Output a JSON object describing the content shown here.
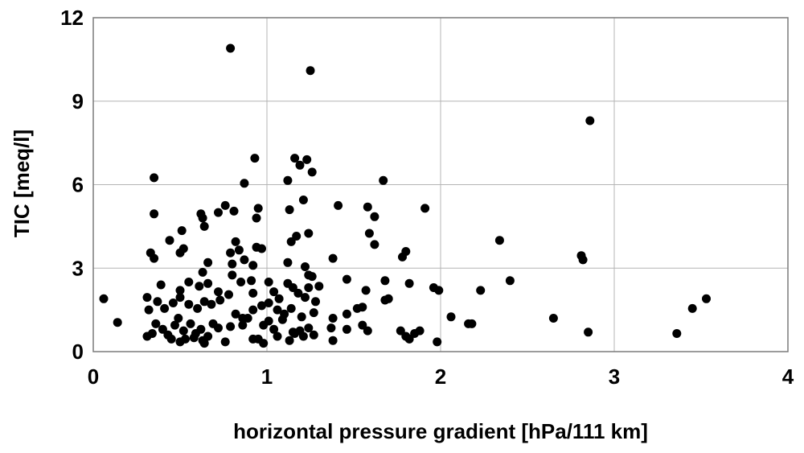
{
  "chart_data": {
    "type": "scatter",
    "title": "",
    "xlabel": "horizontal pressure gradient [hPa/111 km]",
    "ylabel": "TIC [meq/l]",
    "xlim": [
      0,
      4
    ],
    "ylim": [
      0,
      12
    ],
    "xticks": [
      "0",
      "1",
      "2",
      "3",
      "4"
    ],
    "yticks": [
      "0",
      "3",
      "6",
      "9",
      "12"
    ],
    "x_tick_values": [
      0,
      1,
      2,
      3,
      4
    ],
    "y_tick_values": [
      0,
      3,
      6,
      9,
      12
    ],
    "grid": "horizontal and vertical at major ticks",
    "legend": "none",
    "colors": {
      "point": "#000000",
      "grid": "#b4b4b4",
      "frame": "#7a7a7a"
    },
    "points": [
      [
        0.06,
        1.9
      ],
      [
        0.14,
        1.05
      ],
      [
        0.79,
        10.9
      ],
      [
        1.25,
        10.1
      ],
      [
        2.86,
        8.3
      ],
      [
        0.35,
        6.25
      ],
      [
        0.93,
        6.95
      ],
      [
        1.16,
        6.95
      ],
      [
        1.23,
        6.9
      ],
      [
        1.19,
        6.7
      ],
      [
        1.26,
        6.45
      ],
      [
        1.67,
        6.15
      ],
      [
        0.87,
        6.05
      ],
      [
        1.12,
        6.15
      ],
      [
        1.21,
        5.45
      ],
      [
        0.35,
        4.95
      ],
      [
        0.62,
        4.95
      ],
      [
        0.63,
        4.8
      ],
      [
        0.72,
        5.0
      ],
      [
        0.76,
        5.25
      ],
      [
        0.81,
        5.05
      ],
      [
        0.95,
        5.15
      ],
      [
        0.94,
        4.8
      ],
      [
        1.13,
        5.1
      ],
      [
        1.41,
        5.25
      ],
      [
        1.58,
        5.2
      ],
      [
        1.62,
        4.85
      ],
      [
        1.91,
        5.15
      ],
      [
        0.64,
        4.5
      ],
      [
        1.59,
        4.25
      ],
      [
        1.24,
        4.25
      ],
      [
        1.62,
        3.85
      ],
      [
        0.44,
        4.0
      ],
      [
        0.51,
        4.35
      ],
      [
        0.82,
        3.95
      ],
      [
        1.14,
        3.95
      ],
      [
        1.17,
        4.15
      ],
      [
        0.33,
        3.55
      ],
      [
        0.35,
        3.35
      ],
      [
        0.5,
        3.55
      ],
      [
        0.52,
        3.7
      ],
      [
        0.79,
        3.55
      ],
      [
        0.84,
        3.65
      ],
      [
        0.94,
        3.75
      ],
      [
        0.97,
        3.7
      ],
      [
        0.87,
        3.3
      ],
      [
        0.66,
        3.2
      ],
      [
        1.12,
        3.2
      ],
      [
        1.38,
        3.35
      ],
      [
        1.78,
        3.4
      ],
      [
        1.8,
        3.6
      ],
      [
        2.34,
        4.0
      ],
      [
        2.81,
        3.45
      ],
      [
        2.82,
        3.3
      ],
      [
        0.8,
        3.15
      ],
      [
        0.92,
        3.1
      ],
      [
        1.22,
        3.05
      ],
      [
        1.26,
        2.7
      ],
      [
        1.24,
        2.75
      ],
      [
        0.63,
        2.85
      ],
      [
        0.8,
        2.75
      ],
      [
        0.85,
        2.5
      ],
      [
        0.91,
        2.55
      ],
      [
        1.01,
        2.5
      ],
      [
        1.12,
        2.45
      ],
      [
        1.15,
        2.3
      ],
      [
        1.24,
        2.3
      ],
      [
        1.3,
        2.35
      ],
      [
        1.46,
        2.6
      ],
      [
        1.68,
        2.55
      ],
      [
        1.82,
        2.45
      ],
      [
        1.96,
        2.3
      ],
      [
        1.99,
        2.2
      ],
      [
        2.23,
        2.2
      ],
      [
        2.4,
        2.55
      ],
      [
        0.39,
        2.4
      ],
      [
        0.5,
        2.2
      ],
      [
        0.55,
        2.5
      ],
      [
        0.61,
        2.35
      ],
      [
        0.66,
        2.45
      ],
      [
        0.72,
        2.15
      ],
      [
        0.78,
        2.05
      ],
      [
        0.92,
        2.1
      ],
      [
        1.04,
        2.15
      ],
      [
        1.07,
        1.9
      ],
      [
        1.18,
        2.1
      ],
      [
        1.22,
        1.95
      ],
      [
        1.28,
        1.8
      ],
      [
        1.57,
        2.2
      ],
      [
        1.68,
        1.85
      ],
      [
        1.7,
        1.9
      ],
      [
        0.31,
        1.95
      ],
      [
        0.37,
        1.8
      ],
      [
        0.32,
        1.5
      ],
      [
        0.41,
        1.55
      ],
      [
        0.46,
        1.75
      ],
      [
        0.5,
        1.95
      ],
      [
        0.55,
        1.7
      ],
      [
        0.6,
        1.55
      ],
      [
        0.64,
        1.8
      ],
      [
        0.68,
        1.7
      ],
      [
        0.73,
        1.85
      ],
      [
        0.82,
        1.35
      ],
      [
        0.86,
        1.2
      ],
      [
        0.92,
        1.5
      ],
      [
        0.97,
        1.65
      ],
      [
        1.01,
        1.75
      ],
      [
        1.06,
        1.5
      ],
      [
        1.1,
        1.35
      ],
      [
        1.14,
        1.55
      ],
      [
        1.2,
        1.25
      ],
      [
        1.27,
        1.4
      ],
      [
        1.38,
        1.2
      ],
      [
        1.46,
        1.35
      ],
      [
        1.52,
        1.55
      ],
      [
        1.55,
        1.6
      ],
      [
        2.06,
        1.25
      ],
      [
        2.16,
        1.0
      ],
      [
        2.18,
        1.0
      ],
      [
        2.65,
        1.2
      ],
      [
        3.45,
        1.55
      ],
      [
        3.53,
        1.9
      ],
      [
        0.31,
        0.55
      ],
      [
        0.34,
        0.65
      ],
      [
        0.36,
        1.0
      ],
      [
        0.4,
        0.8
      ],
      [
        0.43,
        0.6
      ],
      [
        0.47,
        0.95
      ],
      [
        0.49,
        1.2
      ],
      [
        0.52,
        0.75
      ],
      [
        0.53,
        0.45
      ],
      [
        0.56,
        1.0
      ],
      [
        0.59,
        0.65
      ],
      [
        0.62,
        0.8
      ],
      [
        0.63,
        0.4
      ],
      [
        0.66,
        0.55
      ],
      [
        0.69,
        1.0
      ],
      [
        0.72,
        0.85
      ],
      [
        0.76,
        0.35
      ],
      [
        0.79,
        0.9
      ],
      [
        0.86,
        0.95
      ],
      [
        0.89,
        1.2
      ],
      [
        0.92,
        0.45
      ],
      [
        0.95,
        0.45
      ],
      [
        0.98,
        0.95
      ],
      [
        1.01,
        1.1
      ],
      [
        1.04,
        0.8
      ],
      [
        1.06,
        0.55
      ],
      [
        1.09,
        1.15
      ],
      [
        1.13,
        0.4
      ],
      [
        1.16,
        0.65
      ],
      [
        1.19,
        0.75
      ],
      [
        1.21,
        0.55
      ],
      [
        1.24,
        0.85
      ],
      [
        1.27,
        0.6
      ],
      [
        1.37,
        0.85
      ],
      [
        1.38,
        0.4
      ],
      [
        1.46,
        0.8
      ],
      [
        1.55,
        0.95
      ],
      [
        1.58,
        0.75
      ],
      [
        1.77,
        0.75
      ],
      [
        1.8,
        0.55
      ],
      [
        1.82,
        0.45
      ],
      [
        1.85,
        0.65
      ],
      [
        1.88,
        0.75
      ],
      [
        1.98,
        0.35
      ],
      [
        2.85,
        0.7
      ],
      [
        3.36,
        0.65
      ],
      [
        0.45,
        0.45
      ],
      [
        0.5,
        0.35
      ],
      [
        0.58,
        0.5
      ],
      [
        0.64,
        0.3
      ],
      [
        0.98,
        0.3
      ],
      [
        1.15,
        0.7
      ]
    ]
  }
}
